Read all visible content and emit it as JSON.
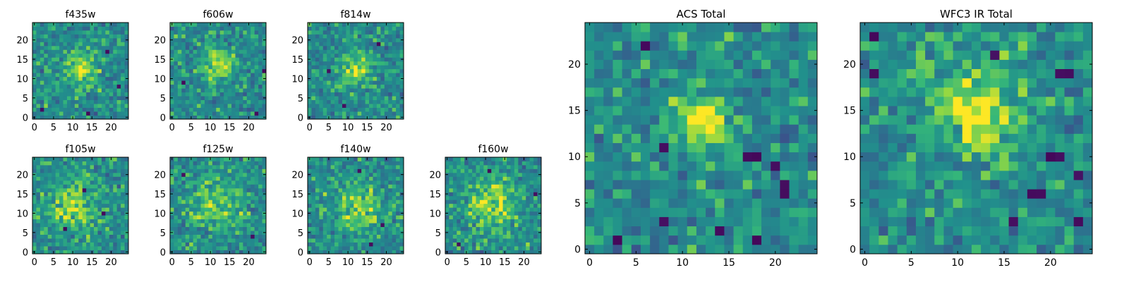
{
  "chart_data": [
    {
      "type": "heatmap",
      "title": "f435w",
      "xticks": [
        "0",
        "5",
        "10",
        "15",
        "20"
      ],
      "yticks": [
        "0",
        "5",
        "10",
        "15",
        "20"
      ],
      "xlim": [
        -0.5,
        24.5
      ],
      "ylim": [
        -0.5,
        24.5
      ],
      "grid_size": [
        25,
        25
      ],
      "colormap": "viridis",
      "bright_region": {
        "center": [
          12,
          13
        ],
        "spread": 3.0,
        "peak": 0.35
      },
      "noise_seed": 11,
      "dark_cells": [
        [
          19,
          17
        ],
        [
          22,
          8
        ],
        [
          2,
          2
        ],
        [
          14,
          1
        ]
      ]
    },
    {
      "type": "heatmap",
      "title": "f606w",
      "xticks": [
        "0",
        "5",
        "10",
        "15",
        "20"
      ],
      "yticks": [
        "0",
        "5",
        "10",
        "15",
        "20"
      ],
      "xlim": [
        -0.5,
        24.5
      ],
      "ylim": [
        -0.5,
        24.5
      ],
      "grid_size": [
        25,
        25
      ],
      "colormap": "viridis",
      "bright_region": {
        "center": [
          12,
          14
        ],
        "spread": 2.8,
        "peak": 0.35
      },
      "noise_seed": 23,
      "dark_cells": [
        [
          24,
          12
        ],
        [
          3,
          9
        ],
        [
          22,
          1
        ]
      ]
    },
    {
      "type": "heatmap",
      "title": "f814w",
      "xticks": [
        "0",
        "5",
        "10",
        "15",
        "20"
      ],
      "yticks": [
        "0",
        "5",
        "10",
        "15",
        "20"
      ],
      "xlim": [
        -0.5,
        24.5
      ],
      "ylim": [
        -0.5,
        24.5
      ],
      "grid_size": [
        25,
        25
      ],
      "colormap": "viridis",
      "bright_region": {
        "center": [
          12,
          13
        ],
        "spread": 3.0,
        "peak": 0.3
      },
      "noise_seed": 37,
      "dark_cells": [
        [
          5,
          12
        ],
        [
          18,
          19
        ],
        [
          9,
          3
        ]
      ]
    },
    {
      "type": "heatmap",
      "title": "f105w",
      "xticks": [
        "0",
        "5",
        "10",
        "15",
        "20"
      ],
      "yticks": [
        "0",
        "5",
        "10",
        "15",
        "20"
      ],
      "xlim": [
        -0.5,
        24.5
      ],
      "ylim": [
        -0.5,
        24.5
      ],
      "grid_size": [
        25,
        25
      ],
      "colormap": "viridis",
      "bright_region": {
        "center": [
          10,
          12
        ],
        "spread": 5.0,
        "peak": 0.25
      },
      "noise_seed": 51,
      "dark_cells": [
        [
          8,
          6
        ],
        [
          18,
          10
        ],
        [
          13,
          16
        ]
      ]
    },
    {
      "type": "heatmap",
      "title": "f125w",
      "xticks": [
        "0",
        "5",
        "10",
        "15",
        "20"
      ],
      "yticks": [
        "0",
        "5",
        "10",
        "15",
        "20"
      ],
      "xlim": [
        -0.5,
        24.5
      ],
      "ylim": [
        -0.5,
        24.5
      ],
      "grid_size": [
        25,
        25
      ],
      "colormap": "viridis",
      "bright_region": {
        "center": [
          11,
          13
        ],
        "spread": 5.0,
        "peak": 0.25
      },
      "noise_seed": 67,
      "dark_cells": [
        [
          3,
          20
        ],
        [
          21,
          4
        ]
      ]
    },
    {
      "type": "heatmap",
      "title": "f140w",
      "xticks": [
        "0",
        "5",
        "10",
        "15",
        "20"
      ],
      "yticks": [
        "0",
        "5",
        "10",
        "15",
        "20"
      ],
      "xlim": [
        -0.5,
        24.5
      ],
      "ylim": [
        -0.5,
        24.5
      ],
      "grid_size": [
        25,
        25
      ],
      "colormap": "viridis",
      "bright_region": {
        "center": [
          13,
          11
        ],
        "spread": 4.5,
        "peak": 0.25
      },
      "noise_seed": 79,
      "dark_cells": [
        [
          19,
          7
        ],
        [
          13,
          21
        ],
        [
          16,
          2
        ]
      ]
    },
    {
      "type": "heatmap",
      "title": "f160w",
      "xticks": [
        "0",
        "5",
        "10",
        "15",
        "20"
      ],
      "yticks": [
        "0",
        "5",
        "10",
        "15",
        "20"
      ],
      "xlim": [
        -0.5,
        24.5
      ],
      "ylim": [
        -0.5,
        24.5
      ],
      "grid_size": [
        25,
        25
      ],
      "colormap": "viridis",
      "bright_region": {
        "center": [
          12,
          12
        ],
        "spread": 4.5,
        "peak": 0.3
      },
      "noise_seed": 97,
      "dark_cells": [
        [
          3,
          2
        ],
        [
          23,
          15
        ],
        [
          11,
          21
        ]
      ]
    },
    {
      "type": "heatmap",
      "title": "ACS Total",
      "xticks": [
        "0",
        "5",
        "10",
        "15",
        "20"
      ],
      "yticks": [
        "0",
        "5",
        "10",
        "15",
        "20"
      ],
      "xlim": [
        -0.5,
        24.5
      ],
      "ylim": [
        -0.5,
        24.5
      ],
      "grid_size": [
        25,
        25
      ],
      "colormap": "viridis",
      "bright_region": {
        "center": [
          12,
          14
        ],
        "spread": 2.0,
        "peak": 0.4
      },
      "noise_seed": 113,
      "dark_cells": [
        [
          6,
          22
        ],
        [
          8,
          11
        ],
        [
          17,
          10
        ],
        [
          18,
          10
        ],
        [
          20,
          9
        ],
        [
          21,
          7
        ],
        [
          21,
          6
        ],
        [
          8,
          3
        ],
        [
          3,
          1
        ],
        [
          14,
          2
        ],
        [
          18,
          1
        ]
      ]
    },
    {
      "type": "heatmap",
      "title": "WFC3 IR Total",
      "xticks": [
        "0",
        "5",
        "10",
        "15",
        "20"
      ],
      "yticks": [
        "0",
        "5",
        "10",
        "15",
        "20"
      ],
      "xlim": [
        -0.5,
        24.5
      ],
      "ylim": [
        -0.5,
        24.5
      ],
      "grid_size": [
        25,
        25
      ],
      "colormap": "viridis",
      "bright_region": {
        "center": [
          12,
          15
        ],
        "spread": 3.5,
        "peak": 0.35
      },
      "noise_seed": 131,
      "dark_cells": [
        [
          1,
          23
        ],
        [
          14,
          21
        ],
        [
          21,
          19
        ],
        [
          22,
          19
        ],
        [
          1,
          19
        ],
        [
          20,
          10
        ],
        [
          21,
          10
        ],
        [
          23,
          8
        ],
        [
          18,
          6
        ],
        [
          19,
          6
        ],
        [
          16,
          3
        ],
        [
          23,
          3
        ]
      ]
    }
  ]
}
